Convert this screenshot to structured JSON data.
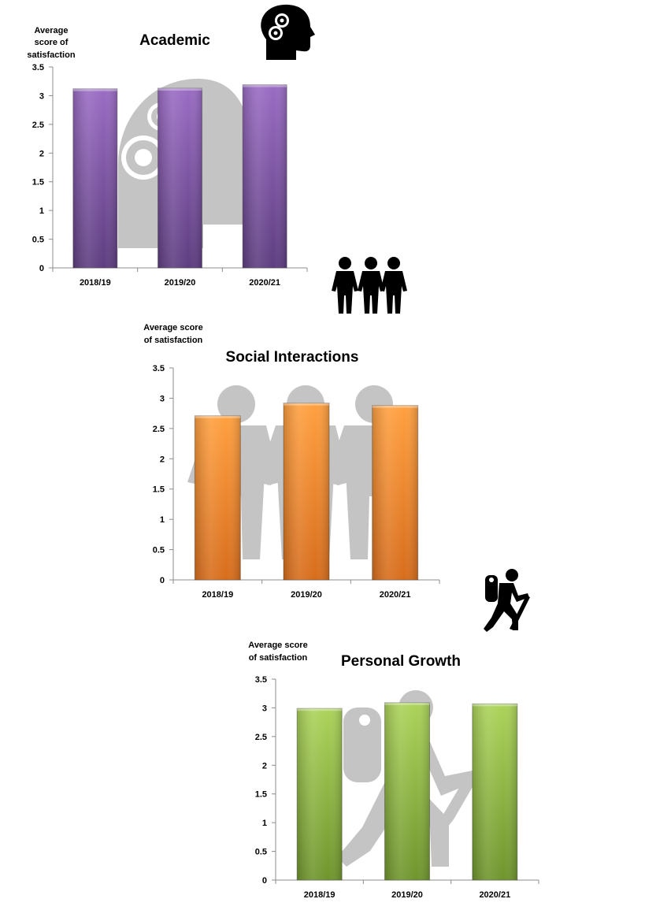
{
  "chart_data": [
    {
      "type": "bar",
      "title": "Academic",
      "ylabel": [
        "Average",
        "score of",
        "satisfaction"
      ],
      "categories": [
        "2018/19",
        "2019/20",
        "2020/21"
      ],
      "values": [
        3.12,
        3.13,
        3.19
      ],
      "ylim": [
        0,
        3.5
      ],
      "yticks": [
        "0",
        "0.5",
        "1",
        "1.5",
        "2",
        "2.5",
        "3",
        "3.5"
      ],
      "grid": false,
      "color": "#7b4f9e",
      "icon": "head-gears-icon"
    },
    {
      "type": "bar",
      "title": "Social Interactions",
      "ylabel": [
        "Average score",
        "of satisfaction"
      ],
      "categories": [
        "2018/19",
        "2019/20",
        "2020/21"
      ],
      "values": [
        2.71,
        2.92,
        2.88
      ],
      "ylim": [
        0,
        3.5
      ],
      "yticks": [
        "0",
        "0.5",
        "1",
        "1.5",
        "2",
        "2.5",
        "3",
        "3.5"
      ],
      "grid": false,
      "color": "#f28a26",
      "icon": "three-people-icon"
    },
    {
      "type": "bar",
      "title": "Personal Growth",
      "ylabel": [
        "Average score",
        "of satisfaction"
      ],
      "categories": [
        "2018/19",
        "2019/20",
        "2020/21"
      ],
      "values": [
        2.99,
        3.09,
        3.07
      ],
      "ylim": [
        0,
        3.5
      ],
      "yticks": [
        "0",
        "0.5",
        "1",
        "1.5",
        "2",
        "2.5",
        "3",
        "3.5"
      ],
      "grid": false,
      "color": "#8fb73e",
      "icon": "hiker-icon"
    }
  ]
}
